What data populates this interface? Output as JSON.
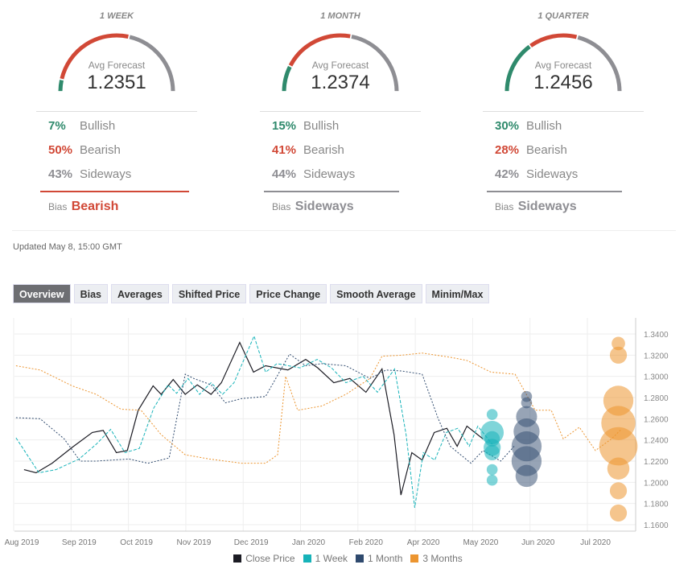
{
  "colors": {
    "bullish": "#2f8a6c",
    "bearish": "#d14836",
    "sideways": "#8e8e93",
    "close": "#1c1c24",
    "week": "#17b3b9",
    "month": "#2f4a6e",
    "quarter": "#ec9530"
  },
  "panels": [
    {
      "title": "1 WEEK",
      "avg_label": "Avg Forecast",
      "avg": "1.2351",
      "bullish": 7,
      "bearish": 50,
      "sideways": 43,
      "bullish_pct": "7%",
      "bearish_pct": "50%",
      "sideways_pct": "43%",
      "bullish_label": "Bullish",
      "bearish_label": "Bearish",
      "sideways_label": "Sideways",
      "bias_label": "Bias",
      "bias": "Bearish",
      "bias_key": "bearish"
    },
    {
      "title": "1 MONTH",
      "avg_label": "Avg Forecast",
      "avg": "1.2374",
      "bullish": 15,
      "bearish": 41,
      "sideways": 44,
      "bullish_pct": "15%",
      "bearish_pct": "41%",
      "sideways_pct": "44%",
      "bullish_label": "Bullish",
      "bearish_label": "Bearish",
      "sideways_label": "Sideways",
      "bias_label": "Bias",
      "bias": "Sideways",
      "bias_key": "sideways"
    },
    {
      "title": "1 QUARTER",
      "avg_label": "Avg Forecast",
      "avg": "1.2456",
      "bullish": 30,
      "bearish": 28,
      "sideways": 42,
      "bullish_pct": "30%",
      "bearish_pct": "28%",
      "sideways_pct": "42%",
      "bullish_label": "Bullish",
      "bearish_label": "Bearish",
      "sideways_label": "Sideways",
      "bias_label": "Bias",
      "bias": "Sideways",
      "bias_key": "sideways"
    }
  ],
  "updated": "Updated May 8, 15:00 GMT",
  "tabs": [
    "Overview",
    "Bias",
    "Averages",
    "Shifted Price",
    "Price Change",
    "Smooth Average",
    "Minim/Max"
  ],
  "chart_data": {
    "type": "line",
    "x_unit": "month index (0 = Aug 2019 label)",
    "xticks": [
      "Aug 2019",
      "Sep 2019",
      "Oct 2019",
      "Nov 2019",
      "Dec 2019",
      "Jan 2020",
      "Feb 2020",
      "Apr 2020",
      "May 2020",
      "Jun 2020",
      "Jul 2020"
    ],
    "yticks": [
      "1.3400",
      "1.3200",
      "1.3000",
      "1.2800",
      "1.2600",
      "1.2400",
      "1.2200",
      "1.2000",
      "1.1800",
      "1.1600"
    ],
    "ylim": [
      1.16,
      1.34
    ],
    "xlim": [
      -0.1,
      10.9
    ],
    "grid": true,
    "legend_position": "bottom",
    "series": [
      {
        "name": "Close Price",
        "key": "close",
        "style": "solid",
        "points": [
          [
            0.04,
            1.212
          ],
          [
            0.25,
            1.209
          ],
          [
            0.53,
            1.218
          ],
          [
            0.88,
            1.233
          ],
          [
            1.23,
            1.247
          ],
          [
            1.42,
            1.249
          ],
          [
            1.65,
            1.228
          ],
          [
            1.84,
            1.23
          ],
          [
            2.03,
            1.268
          ],
          [
            2.29,
            1.291
          ],
          [
            2.43,
            1.283
          ],
          [
            2.64,
            1.297
          ],
          [
            2.85,
            1.283
          ],
          [
            3.06,
            1.292
          ],
          [
            3.3,
            1.283
          ],
          [
            3.48,
            1.294
          ],
          [
            3.8,
            1.332
          ],
          [
            4.04,
            1.304
          ],
          [
            4.25,
            1.31
          ],
          [
            4.64,
            1.306
          ],
          [
            4.95,
            1.316
          ],
          [
            5.16,
            1.308
          ],
          [
            5.44,
            1.294
          ],
          [
            5.72,
            1.298
          ],
          [
            6.0,
            1.285
          ],
          [
            6.28,
            1.307
          ],
          [
            6.49,
            1.245
          ],
          [
            6.61,
            1.188
          ],
          [
            6.8,
            1.228
          ],
          [
            6.98,
            1.221
          ],
          [
            7.19,
            1.247
          ],
          [
            7.41,
            1.251
          ],
          [
            7.59,
            1.234
          ],
          [
            7.76,
            1.253
          ],
          [
            8.04,
            1.241
          ]
        ]
      },
      {
        "name": "1 Week",
        "key": "week",
        "style": "dashed",
        "points": [
          [
            -0.1,
            1.242
          ],
          [
            0.3,
            1.209
          ],
          [
            0.6,
            1.212
          ],
          [
            1.0,
            1.222
          ],
          [
            1.3,
            1.236
          ],
          [
            1.55,
            1.25
          ],
          [
            1.8,
            1.228
          ],
          [
            2.05,
            1.232
          ],
          [
            2.3,
            1.27
          ],
          [
            2.55,
            1.292
          ],
          [
            2.7,
            1.284
          ],
          [
            2.9,
            1.298
          ],
          [
            3.1,
            1.283
          ],
          [
            3.3,
            1.294
          ],
          [
            3.5,
            1.283
          ],
          [
            3.7,
            1.294
          ],
          [
            4.05,
            1.338
          ],
          [
            4.25,
            1.304
          ],
          [
            4.45,
            1.312
          ],
          [
            4.85,
            1.308
          ],
          [
            5.15,
            1.316
          ],
          [
            5.4,
            1.308
          ],
          [
            5.65,
            1.294
          ],
          [
            5.95,
            1.3
          ],
          [
            6.2,
            1.285
          ],
          [
            6.5,
            1.307
          ],
          [
            6.7,
            1.245
          ],
          [
            6.85,
            1.176
          ],
          [
            7.0,
            1.228
          ],
          [
            7.2,
            1.221
          ],
          [
            7.4,
            1.247
          ],
          [
            7.6,
            1.251
          ],
          [
            7.8,
            1.234
          ],
          [
            7.95,
            1.253
          ],
          [
            8.2,
            1.236
          ]
        ]
      },
      {
        "name": "1 Month",
        "key": "month",
        "style": "dotted",
        "points": [
          [
            -0.1,
            1.261
          ],
          [
            0.32,
            1.26
          ],
          [
            0.74,
            1.241
          ],
          [
            1.02,
            1.22
          ],
          [
            1.3,
            1.22
          ],
          [
            1.87,
            1.222
          ],
          [
            2.2,
            1.218
          ],
          [
            2.57,
            1.223
          ],
          [
            2.85,
            1.302
          ],
          [
            3.0,
            1.298
          ],
          [
            3.3,
            1.292
          ],
          [
            3.55,
            1.275
          ],
          [
            3.83,
            1.279
          ],
          [
            4.25,
            1.281
          ],
          [
            4.67,
            1.321
          ],
          [
            4.95,
            1.31
          ],
          [
            5.23,
            1.312
          ],
          [
            5.65,
            1.31
          ],
          [
            6.07,
            1.298
          ],
          [
            6.35,
            1.306
          ],
          [
            6.63,
            1.305
          ],
          [
            6.98,
            1.302
          ],
          [
            7.26,
            1.26
          ],
          [
            7.47,
            1.234
          ],
          [
            7.83,
            1.218
          ],
          [
            8.04,
            1.23
          ],
          [
            8.35,
            1.22
          ],
          [
            8.6,
            1.235
          ]
        ]
      },
      {
        "name": "3 Months",
        "key": "quarter",
        "style": "dotted",
        "points": [
          [
            -0.1,
            1.31
          ],
          [
            0.32,
            1.306
          ],
          [
            0.88,
            1.291
          ],
          [
            1.3,
            1.283
          ],
          [
            1.73,
            1.269
          ],
          [
            2.08,
            1.268
          ],
          [
            2.43,
            1.245
          ],
          [
            2.85,
            1.226
          ],
          [
            3.27,
            1.222
          ],
          [
            3.83,
            1.218
          ],
          [
            4.25,
            1.218
          ],
          [
            4.46,
            1.226
          ],
          [
            4.6,
            1.3
          ],
          [
            4.81,
            1.268
          ],
          [
            5.23,
            1.272
          ],
          [
            5.65,
            1.283
          ],
          [
            6.07,
            1.298
          ],
          [
            6.28,
            1.319
          ],
          [
            6.63,
            1.32
          ],
          [
            6.98,
            1.322
          ],
          [
            7.47,
            1.318
          ],
          [
            7.76,
            1.315
          ],
          [
            8.18,
            1.304
          ],
          [
            8.6,
            1.302
          ],
          [
            8.95,
            1.268
          ],
          [
            9.23,
            1.268
          ],
          [
            9.44,
            1.241
          ],
          [
            9.72,
            1.252
          ],
          [
            10.0,
            1.23
          ],
          [
            10.28,
            1.241
          ],
          [
            10.45,
            1.25
          ]
        ]
      }
    ],
    "bubbles": [
      {
        "key": "week",
        "x": 8.2,
        "points": [
          [
            1.264,
            1
          ],
          [
            1.247,
            9
          ],
          [
            1.241,
            3
          ],
          [
            1.233,
            4
          ],
          [
            1.228,
            3
          ],
          [
            1.212,
            1
          ],
          [
            1.202,
            1
          ]
        ]
      },
      {
        "key": "month",
        "x": 8.8,
        "points": [
          [
            1.281,
            1
          ],
          [
            1.275,
            1
          ],
          [
            1.262,
            7
          ],
          [
            1.248,
            12
          ],
          [
            1.234,
            17
          ],
          [
            1.22,
            17
          ],
          [
            1.206,
            8
          ]
        ]
      },
      {
        "key": "quarter",
        "x": 10.4,
        "points": [
          [
            1.331,
            2
          ],
          [
            1.32,
            4
          ],
          [
            1.277,
            17
          ],
          [
            1.256,
            23
          ],
          [
            1.234,
            30
          ],
          [
            1.213,
            8
          ],
          [
            1.192,
            4
          ],
          [
            1.171,
            4
          ]
        ]
      }
    ],
    "legend": [
      {
        "label": "Close Price",
        "key": "close"
      },
      {
        "label": "1 Week",
        "key": "week"
      },
      {
        "label": "1 Month",
        "key": "month"
      },
      {
        "label": "3 Months",
        "key": "quarter"
      }
    ]
  }
}
